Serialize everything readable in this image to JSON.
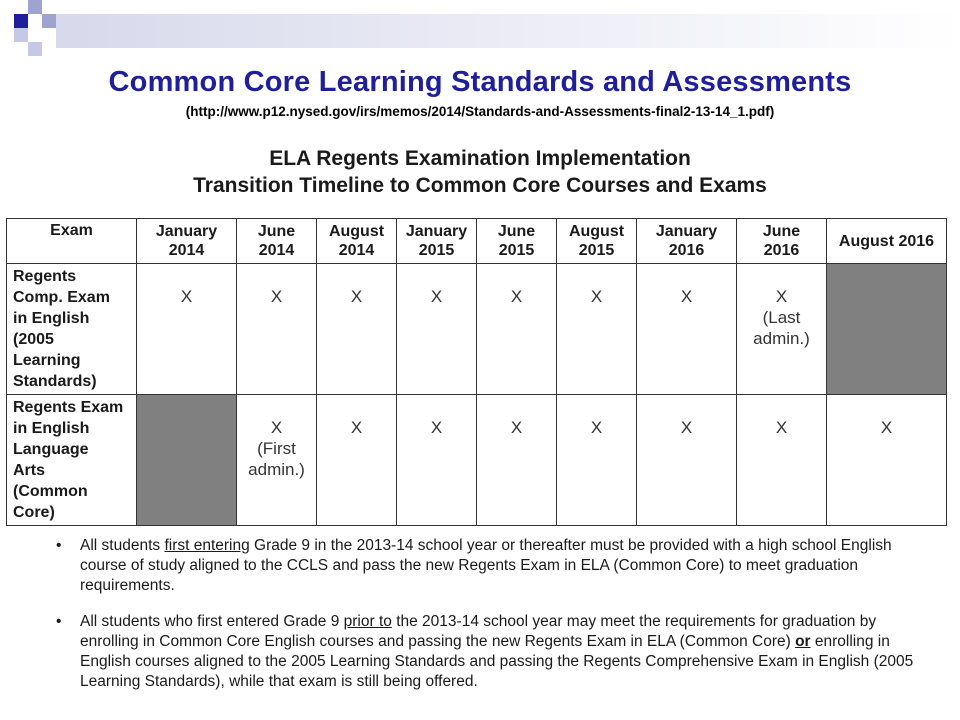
{
  "slide": {
    "title": "Common Core Learning Standards and Assessments",
    "source_url": "(http://www.p12.nysed.gov/irs/memos/2014/Standards-and-Assessments-final2-13-14_1.pdf)",
    "accent_color": "#1f1f9c"
  },
  "document": {
    "heading_line1": "ELA Regents Examination Implementation",
    "heading_line2": "Transition Timeline to Common Core Courses and Exams"
  },
  "table": {
    "header_exam": "Exam",
    "columns": [
      {
        "line1": "January",
        "line2": "2014"
      },
      {
        "line1": "June",
        "line2": "2014"
      },
      {
        "line1": "August",
        "line2": "2014"
      },
      {
        "line1": "January",
        "line2": "2015"
      },
      {
        "line1": "June",
        "line2": "2015"
      },
      {
        "line1": "August",
        "line2": "2015"
      },
      {
        "line1": "January",
        "line2": "2016"
      },
      {
        "line1": "June",
        "line2": "2016"
      },
      {
        "line1": "August 2016",
        "line2": ""
      }
    ],
    "rows": [
      {
        "exam_lines": [
          "Regents",
          "Comp. Exam",
          "in English",
          "(2005",
          "Learning",
          "Standards)"
        ],
        "cells": [
          {
            "mark": "X",
            "note": ""
          },
          {
            "mark": "X",
            "note": ""
          },
          {
            "mark": "X",
            "note": ""
          },
          {
            "mark": "X",
            "note": ""
          },
          {
            "mark": "X",
            "note": ""
          },
          {
            "mark": "X",
            "note": ""
          },
          {
            "mark": "X",
            "note": ""
          },
          {
            "mark": "X",
            "note_line1": "(Last",
            "note_line2": "admin.)"
          },
          {
            "shaded": true
          }
        ]
      },
      {
        "exam_lines": [
          "Regents Exam",
          "in English",
          "Language",
          "Arts",
          "(Common",
          "Core)"
        ],
        "cells": [
          {
            "shaded": true
          },
          {
            "mark": "X",
            "note_line1": "(First",
            "note_line2": "admin.)"
          },
          {
            "mark": "X",
            "note": ""
          },
          {
            "mark": "X",
            "note": ""
          },
          {
            "mark": "X",
            "note": ""
          },
          {
            "mark": "X",
            "note": ""
          },
          {
            "mark": "X",
            "note": ""
          },
          {
            "mark": "X",
            "note": ""
          },
          {
            "mark": "X",
            "note": ""
          }
        ]
      }
    ],
    "shade_color": "#808080"
  },
  "bullets": {
    "bullet_symbol": "•",
    "b1": {
      "part1": "All students ",
      "underlined": "first entering",
      "part2": " Grade 9 in the 2013-14 school year or thereafter must be provided with a high school English course of study aligned to the CCLS and pass the new Regents Exam in ELA (Common Core) to meet graduation requirements."
    },
    "b2": {
      "part1": "All students who first entered Grade 9 ",
      "underlined": "prior to",
      "part2": " the 2013-14 school year may meet the requirements for graduation by enrolling in Common Core English courses and passing the new Regents Exam in ELA (Common Core) ",
      "or": "or",
      "part3": " enrolling in English courses aligned to the 2005 Learning Standards and passing the Regents Comprehensive Exam in English (2005 Learning Standards), while that exam is still being offered."
    }
  }
}
